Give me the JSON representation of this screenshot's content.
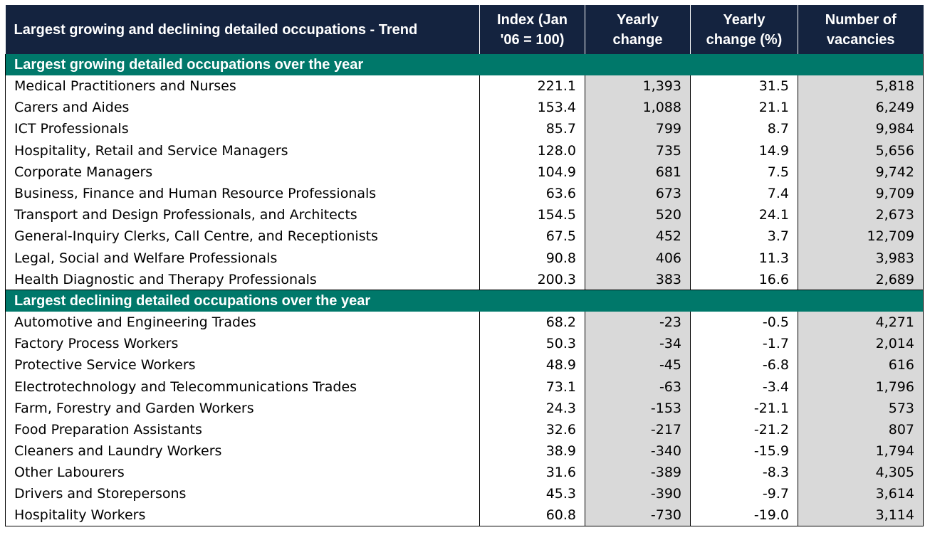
{
  "headers": {
    "title": "Largest growing and declining detailed occupations - Trend",
    "index": "Index (Jan '06 = 100)",
    "yearly_change": "Yearly change",
    "yearly_change_pct": "Yearly change (%)",
    "vacancies": "Number of vacancies"
  },
  "sections": [
    {
      "title": "Largest growing detailed occupations over the year",
      "rows": [
        {
          "name": "Medical Practitioners and Nurses",
          "index": "221.1",
          "change": "1,393",
          "pct": "31.5",
          "vacancies": "5,818"
        },
        {
          "name": "Carers and Aides",
          "index": "153.4",
          "change": "1,088",
          "pct": "21.1",
          "vacancies": "6,249"
        },
        {
          "name": "ICT Professionals",
          "index": "85.7",
          "change": "799",
          "pct": "8.7",
          "vacancies": "9,984"
        },
        {
          "name": "Hospitality, Retail and Service Managers",
          "index": "128.0",
          "change": "735",
          "pct": "14.9",
          "vacancies": "5,656"
        },
        {
          "name": "Corporate Managers",
          "index": "104.9",
          "change": "681",
          "pct": "7.5",
          "vacancies": "9,742"
        },
        {
          "name": "Business, Finance and Human Resource Professionals",
          "index": "63.6",
          "change": "673",
          "pct": "7.4",
          "vacancies": "9,709"
        },
        {
          "name": "Transport and Design Professionals, and Architects",
          "index": "154.5",
          "change": "520",
          "pct": "24.1",
          "vacancies": "2,673"
        },
        {
          "name": "General-Inquiry Clerks, Call Centre, and Receptionists",
          "index": "67.5",
          "change": "452",
          "pct": "3.7",
          "vacancies": "12,709"
        },
        {
          "name": "Legal, Social and Welfare Professionals",
          "index": "90.8",
          "change": "406",
          "pct": "11.3",
          "vacancies": "3,983"
        },
        {
          "name": "Health Diagnostic and Therapy Professionals",
          "index": "200.3",
          "change": "383",
          "pct": "16.6",
          "vacancies": "2,689"
        }
      ]
    },
    {
      "title": "Largest declining detailed occupations over the year",
      "rows": [
        {
          "name": "Automotive and Engineering Trades",
          "index": "68.2",
          "change": "-23",
          "pct": "-0.5",
          "vacancies": "4,271"
        },
        {
          "name": "Factory Process Workers",
          "index": "50.3",
          "change": "-34",
          "pct": "-1.7",
          "vacancies": "2,014"
        },
        {
          "name": "Protective Service Workers",
          "index": "48.9",
          "change": "-45",
          "pct": "-6.8",
          "vacancies": "616"
        },
        {
          "name": "Electrotechnology and Telecommunications Trades",
          "index": "73.1",
          "change": "-63",
          "pct": "-3.4",
          "vacancies": "1,796"
        },
        {
          "name": "Farm, Forestry and Garden Workers",
          "index": "24.3",
          "change": "-153",
          "pct": "-21.1",
          "vacancies": "573"
        },
        {
          "name": "Food Preparation Assistants",
          "index": "32.6",
          "change": "-217",
          "pct": "-21.2",
          "vacancies": "807"
        },
        {
          "name": "Cleaners and Laundry Workers",
          "index": "38.9",
          "change": "-340",
          "pct": "-15.9",
          "vacancies": "1,794"
        },
        {
          "name": "Other Labourers",
          "index": "31.6",
          "change": "-389",
          "pct": "-8.3",
          "vacancies": "4,305"
        },
        {
          "name": "Drivers and Storepersons",
          "index": "45.3",
          "change": "-390",
          "pct": "-9.7",
          "vacancies": "3,614"
        },
        {
          "name": "Hospitality Workers",
          "index": "60.8",
          "change": "-730",
          "pct": "-19.0",
          "vacancies": "3,114"
        }
      ]
    }
  ],
  "colors": {
    "header_bg": "#14233f",
    "section_bg": "#00786a",
    "shade": "#d9d9d9"
  }
}
